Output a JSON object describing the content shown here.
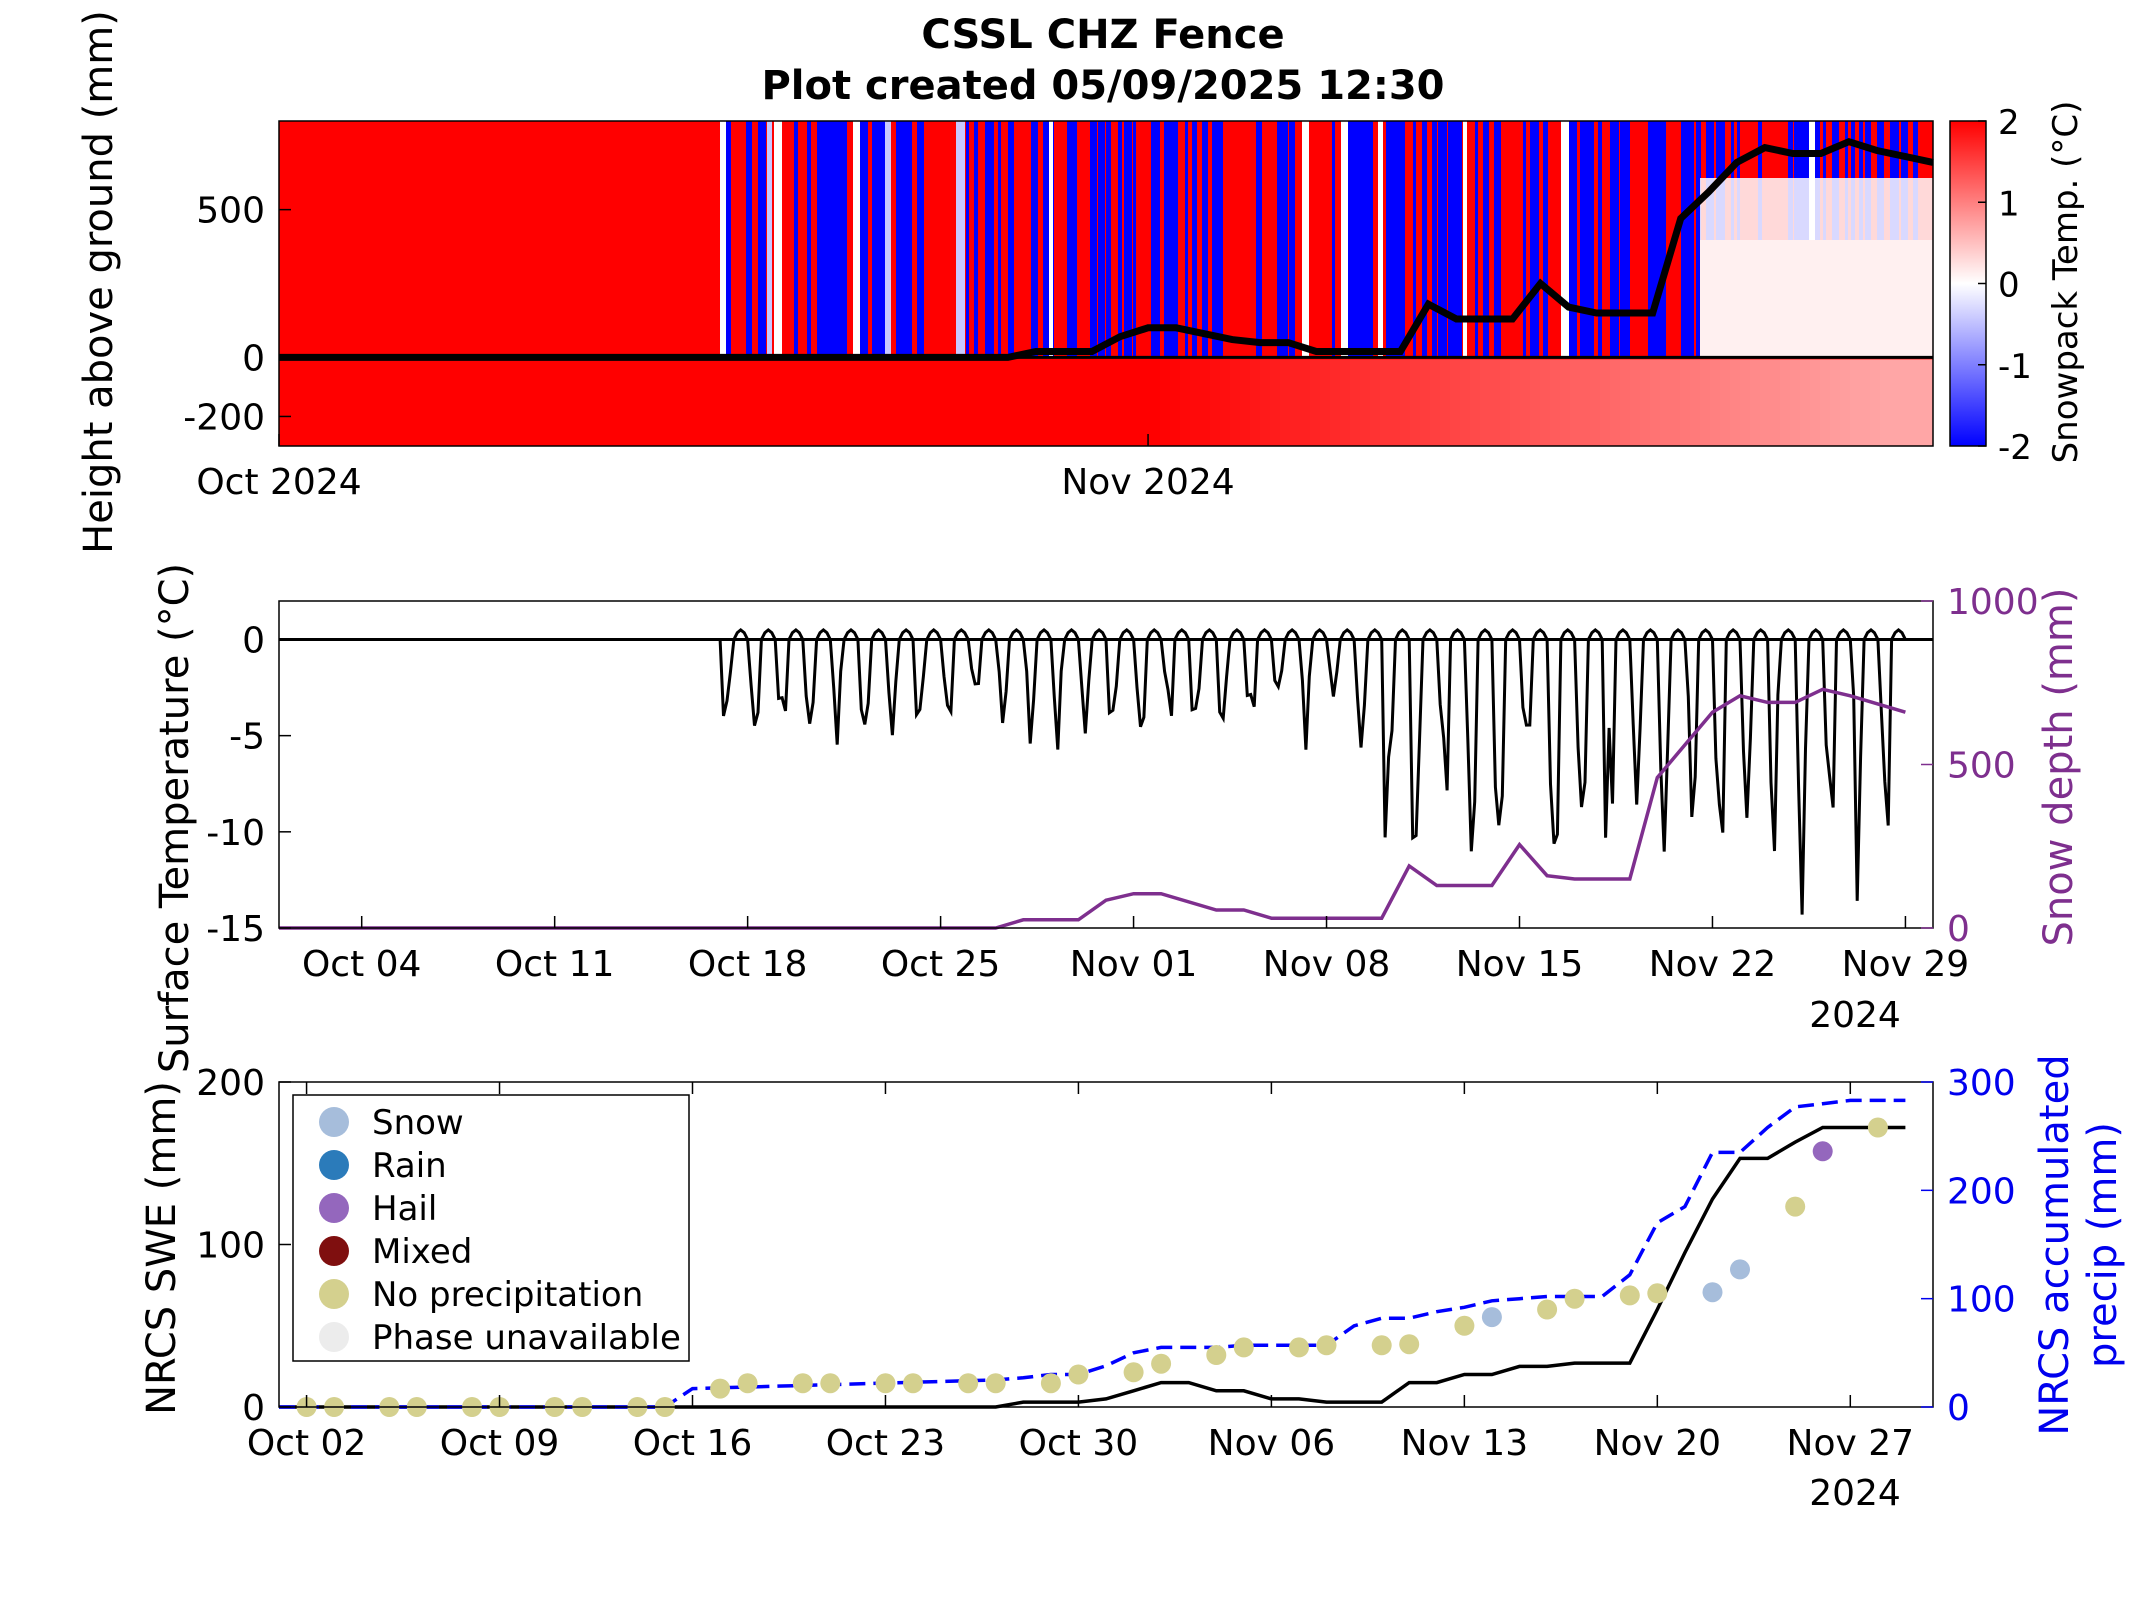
{
  "figure": {
    "title_line1": "CSSL CHZ Fence",
    "title_line2": "Plot created 05/09/2025 12:30"
  },
  "colors": {
    "warm": "#ff0000",
    "cold": "#0000ff",
    "snow_depth": "#7e2f8e",
    "precip": "#0000ff",
    "swe": "#000000",
    "snow_marker": "#a6bddb",
    "rain_marker": "#2b7bba",
    "hail_marker": "#9467bd",
    "mixed_marker": "#7f0f0f",
    "none_marker": "#d4d08e",
    "na_marker": "#ececec"
  },
  "chart_data": [
    {
      "type": "heatmap",
      "ylabel": "Height above ground (mm)",
      "colorbar_label": "Snowpack Temp. (°C)",
      "colorbar_ticks": [
        "2",
        "1",
        "0",
        "-1",
        "-2"
      ],
      "clim": [
        -2,
        2
      ],
      "xlim": [
        "2024-10-01",
        "2024-11-29"
      ],
      "ylim": [
        -300,
        800
      ],
      "x_ticks": [
        "Oct 2024",
        "Nov 2024"
      ],
      "y_ticks": [
        "500",
        "0",
        "-200"
      ],
      "snow_depth_line": {
        "x": [
          "2024-10-01",
          "2024-10-27",
          "2024-10-28",
          "2024-10-30",
          "2024-10-31",
          "2024-11-01",
          "2024-11-02",
          "2024-11-04",
          "2024-11-05",
          "2024-11-06",
          "2024-11-07",
          "2024-11-10",
          "2024-11-11",
          "2024-11-12",
          "2024-11-14",
          "2024-11-15",
          "2024-11-16",
          "2024-11-17",
          "2024-11-19",
          "2024-11-20",
          "2024-11-21",
          "2024-11-22",
          "2024-11-23",
          "2024-11-24",
          "2024-11-25",
          "2024-11-26",
          "2024-11-27",
          "2024-11-29"
        ],
        "y": [
          0,
          0,
          20,
          20,
          70,
          100,
          100,
          60,
          50,
          50,
          20,
          20,
          180,
          130,
          130,
          250,
          170,
          150,
          150,
          470,
          560,
          660,
          710,
          690,
          690,
          730,
          700,
          660
        ]
      }
    },
    {
      "type": "line",
      "ylabel": "Surface Temperature (°C)",
      "y2label": "Snow depth (mm)",
      "x_ticks": [
        "Oct 04",
        "Oct 11",
        "Oct 18",
        "Oct 25",
        "Nov 01",
        "Nov 08",
        "Nov 15",
        "Nov 22",
        "Nov 29"
      ],
      "x_year": "2024",
      "y_ticks": [
        "0",
        "-5",
        "-10",
        "-15"
      ],
      "y2_ticks": [
        "1000",
        "500",
        "0"
      ],
      "ylim": [
        -15,
        2
      ],
      "y2lim": [
        0,
        1000
      ],
      "xlim": [
        "2024-10-01",
        "2024-11-30"
      ],
      "series": [
        {
          "values_note": "",
          "x": [],
          "y": []
        },
        {
          "x": [
            "2024-10-01",
            "2024-10-27",
            "2024-10-28",
            "2024-10-30",
            "2024-10-31",
            "2024-11-01",
            "2024-11-02",
            "2024-11-04",
            "2024-11-05",
            "2024-11-06",
            "2024-11-07",
            "2024-11-10",
            "2024-11-11",
            "2024-11-12",
            "2024-11-14",
            "2024-11-15",
            "2024-11-16",
            "2024-11-17",
            "2024-11-19",
            "2024-11-20",
            "2024-11-21",
            "2024-11-22",
            "2024-11-23",
            "2024-11-24",
            "2024-11-25",
            "2024-11-26",
            "2024-11-27",
            "2024-11-29"
          ],
          "y": [
            0,
            0,
            25,
            25,
            85,
            105,
            105,
            55,
            55,
            30,
            30,
            30,
            190,
            130,
            130,
            255,
            160,
            150,
            150,
            460,
            560,
            660,
            710,
            690,
            690,
            730,
            710,
            660
          ]
        }
      ]
    },
    {
      "type": "line",
      "ylabel": "NRCS SWE (mm)",
      "y2label_line1": "NRCS accumulated",
      "y2label_line2": "precip (mm)",
      "x_ticks": [
        "Oct 02",
        "Oct 09",
        "Oct 16",
        "Oct 23",
        "Oct 30",
        "Nov 06",
        "Nov 13",
        "Nov 20",
        "Nov 27"
      ],
      "x_year": "2024",
      "y_ticks": [
        "200",
        "100",
        "0"
      ],
      "y2_ticks": [
        "300",
        "200",
        "100",
        "0"
      ],
      "ylim": [
        0,
        200
      ],
      "y2lim": [
        0,
        300
      ],
      "xlim": [
        "2024-10-01",
        "2024-11-30"
      ],
      "legend": [
        "Snow",
        "Rain",
        "Hail",
        "Mixed",
        "No precipitation",
        "Phase unavailable"
      ],
      "legend_location": "top-left",
      "swe": {
        "x": [
          "2024-10-01",
          "2024-10-27",
          "2024-10-28",
          "2024-10-30",
          "2024-10-31",
          "2024-11-01",
          "2024-11-02",
          "2024-11-03",
          "2024-11-04",
          "2024-11-05",
          "2024-11-06",
          "2024-11-07",
          "2024-11-08",
          "2024-11-09",
          "2024-11-10",
          "2024-11-11",
          "2024-11-12",
          "2024-11-13",
          "2024-11-14",
          "2024-11-15",
          "2024-11-16",
          "2024-11-17",
          "2024-11-18",
          "2024-11-19",
          "2024-11-20",
          "2024-11-21",
          "2024-11-22",
          "2024-11-23",
          "2024-11-24",
          "2024-11-25",
          "2024-11-26",
          "2024-11-29"
        ],
        "y": [
          0,
          0,
          3,
          3,
          5,
          10,
          15,
          15,
          10,
          10,
          5,
          5,
          3,
          3,
          3,
          15,
          15,
          20,
          20,
          25,
          25,
          27,
          27,
          27,
          60,
          95,
          128,
          153,
          153,
          163,
          172,
          172
        ]
      },
      "precip": {
        "x": [
          "2024-10-01",
          "2024-10-14",
          "2024-10-15",
          "2024-10-16",
          "2024-10-27",
          "2024-10-28",
          "2024-10-29",
          "2024-10-30",
          "2024-10-31",
          "2024-11-01",
          "2024-11-02",
          "2024-11-03",
          "2024-11-04",
          "2024-11-05",
          "2024-11-06",
          "2024-11-07",
          "2024-11-08",
          "2024-11-09",
          "2024-11-10",
          "2024-11-11",
          "2024-11-12",
          "2024-11-13",
          "2024-11-14",
          "2024-11-15",
          "2024-11-16",
          "2024-11-17",
          "2024-11-18",
          "2024-11-19",
          "2024-11-20",
          "2024-11-21",
          "2024-11-22",
          "2024-11-23",
          "2024-11-24",
          "2024-11-25",
          "2024-11-26",
          "2024-11-27",
          "2024-11-29"
        ],
        "y": [
          0,
          0,
          0,
          17,
          25,
          27,
          30,
          30,
          38,
          50,
          55,
          55,
          55,
          57,
          57,
          57,
          57,
          75,
          82,
          82,
          88,
          92,
          98,
          100,
          102,
          102,
          102,
          122,
          170,
          185,
          235,
          235,
          258,
          277,
          280,
          283,
          283
        ]
      },
      "markers": {
        "x": [
          "2024-10-02",
          "2024-10-03",
          "2024-10-05",
          "2024-10-06",
          "2024-10-08",
          "2024-10-09",
          "2024-10-11",
          "2024-10-12",
          "2024-10-14",
          "2024-10-15",
          "2024-10-17",
          "2024-10-18",
          "2024-10-20",
          "2024-10-21",
          "2024-10-23",
          "2024-10-24",
          "2024-10-26",
          "2024-10-27",
          "2024-10-29",
          "2024-10-30",
          "2024-11-01",
          "2024-11-02",
          "2024-11-04",
          "2024-11-05",
          "2024-11-07",
          "2024-11-08",
          "2024-11-10",
          "2024-11-11",
          "2024-11-13",
          "2024-11-14",
          "2024-11-16",
          "2024-11-17",
          "2024-11-19",
          "2024-11-20",
          "2024-11-22",
          "2024-11-23",
          "2024-11-25",
          "2024-11-26",
          "2024-11-28"
        ],
        "y": [
          0,
          0,
          0,
          0,
          0,
          0,
          0,
          0,
          0,
          0,
          17,
          22,
          22,
          22,
          22,
          22,
          22,
          22,
          22,
          30,
          32,
          40,
          48,
          55,
          55,
          57,
          57,
          58,
          75,
          83,
          90,
          100,
          103,
          105,
          106,
          127,
          185,
          236,
          258
        ],
        "phase": [
          "none",
          "none",
          "none",
          "none",
          "none",
          "none",
          "none",
          "none",
          "none",
          "none",
          "none",
          "none",
          "none",
          "none",
          "none",
          "none",
          "none",
          "none",
          "none",
          "none",
          "none",
          "none",
          "none",
          "none",
          "none",
          "none",
          "none",
          "none",
          "none",
          "snow",
          "none",
          "none",
          "none",
          "none",
          "snow",
          "snow",
          "none",
          "hail",
          "none"
        ]
      }
    }
  ]
}
